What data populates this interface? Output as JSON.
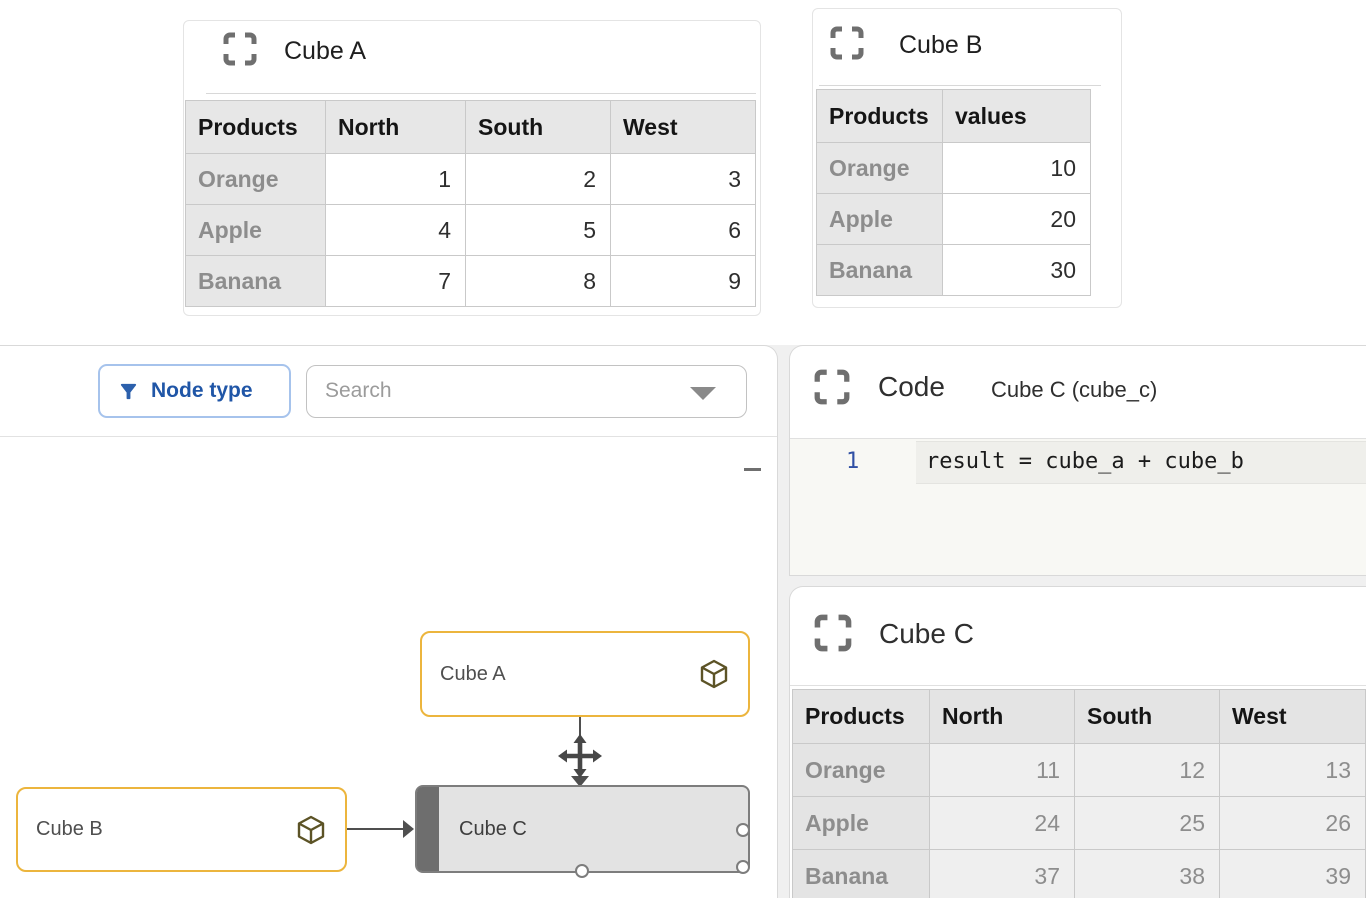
{
  "colors": {
    "node_accent": "#ECB53D",
    "primary_blue": "#2056A7",
    "primary_blue_light": "#A6C3EC",
    "selected_node_fill": "#E3E3E3",
    "selected_node_bar": "#6E6E6E",
    "edge": "#4F4F4F",
    "cube_icon": "#5C5326"
  },
  "panels": {
    "cube_a": {
      "title": "Cube A",
      "table": {
        "columns": [
          "Products",
          "North",
          "South",
          "West"
        ],
        "rows": [
          {
            "label": "Orange",
            "values": [
              1,
              2,
              3
            ]
          },
          {
            "label": "Apple",
            "values": [
              4,
              5,
              6
            ]
          },
          {
            "label": "Banana",
            "values": [
              7,
              8,
              9
            ]
          }
        ]
      }
    },
    "cube_b": {
      "title": "Cube B",
      "table": {
        "columns": [
          "Products",
          "values"
        ],
        "rows": [
          {
            "label": "Orange",
            "values": [
              10
            ]
          },
          {
            "label": "Apple",
            "values": [
              20
            ]
          },
          {
            "label": "Banana",
            "values": [
              30
            ]
          }
        ]
      }
    },
    "graph": {
      "filter_button_label": "Node type",
      "search_placeholder": "Search",
      "nodes": [
        {
          "label": "Cube A"
        },
        {
          "label": "Cube B"
        },
        {
          "label": "Cube C"
        }
      ]
    },
    "code": {
      "title": "Code",
      "subtitle": "Cube C (cube_c)",
      "lines": [
        {
          "number": "1",
          "code": "result = cube_a + cube_b"
        }
      ]
    },
    "cube_c": {
      "title": "Cube C",
      "table": {
        "columns": [
          "Products",
          "North",
          "South",
          "West"
        ],
        "rows": [
          {
            "label": "Orange",
            "values": [
              11,
              12,
              13
            ]
          },
          {
            "label": "Apple",
            "values": [
              24,
              25,
              26
            ]
          },
          {
            "label": "Banana",
            "values": [
              37,
              38,
              39
            ]
          }
        ]
      }
    }
  }
}
